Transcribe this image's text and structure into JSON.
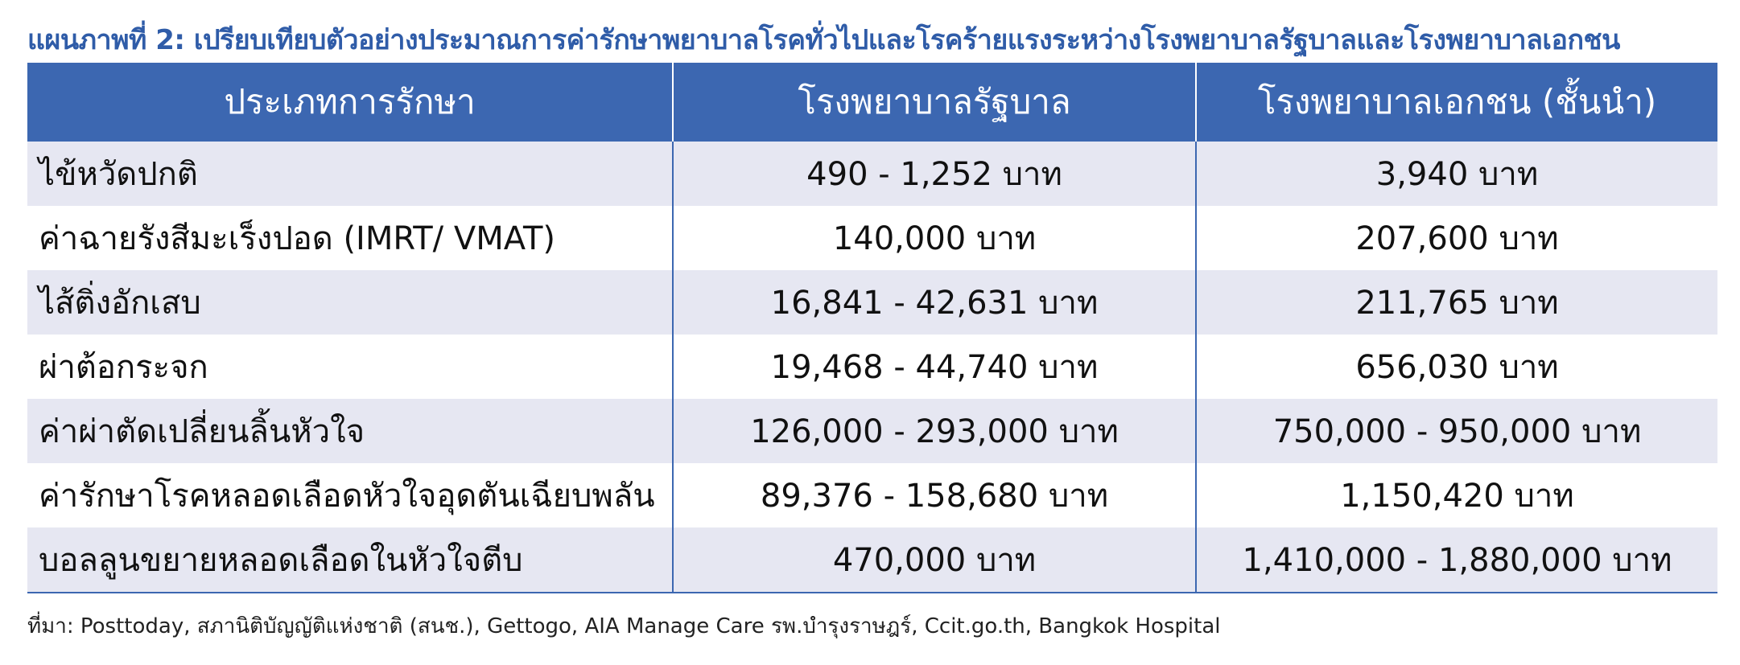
{
  "title": "แผนภาพที่ 2: เปรียบเทียบตัวอย่างประมาณการค่ารักษาพยาบาลโรคทั่วไปและโรคร้ายแรงระหว่างโรงพยาบาลรัฐบาลและโรงพยาบาลเอกชน",
  "table": {
    "headers": [
      "ประเภทการรักษา",
      "โรงพยาบาลรัฐบาล",
      "โรงพยาบาลเอกชน (ชั้นนำ)"
    ],
    "rows": [
      [
        "ไข้หวัดปกติ",
        "490 - 1,252 บาท",
        "3,940 บาท"
      ],
      [
        "ค่าฉายรังสีมะเร็งปอด (IMRT/ VMAT)",
        "140,000 บาท",
        "207,600 บาท"
      ],
      [
        "ไส้ติ่งอักเสบ",
        "16,841 - 42,631 บาท",
        "211,765 บาท"
      ],
      [
        "ผ่าต้อกระจก",
        "19,468 - 44,740 บาท",
        "656,030 บาท"
      ],
      [
        "ค่าผ่าตัดเปลี่ยนลิ้นหัวใจ",
        "126,000 - 293,000 บาท",
        "750,000 - 950,000 บาท"
      ],
      [
        "ค่ารักษาโรคหลอดเลือดหัวใจอุดตันเฉียบพลัน",
        "89,376 - 158,680 บาท",
        "1,150,420 บาท"
      ],
      [
        "บอลลูนขยายหลอดเลือดในหัวใจตีบ",
        "470,000 บาท",
        "1,410,000 - 1,880,000 บาท"
      ]
    ]
  },
  "source": "ที่มา: Posttoday, สภานิติบัญญัติแห่งชาติ (สนช.), Gettogo, AIA Manage Care รพ.บำรุงราษฎร์, Ccit.go.th, Bangkok Hospital",
  "colors": {
    "title": "#2f5ca8",
    "header_bg": "#3c67b1",
    "row_shade": "#e6e7f2"
  }
}
